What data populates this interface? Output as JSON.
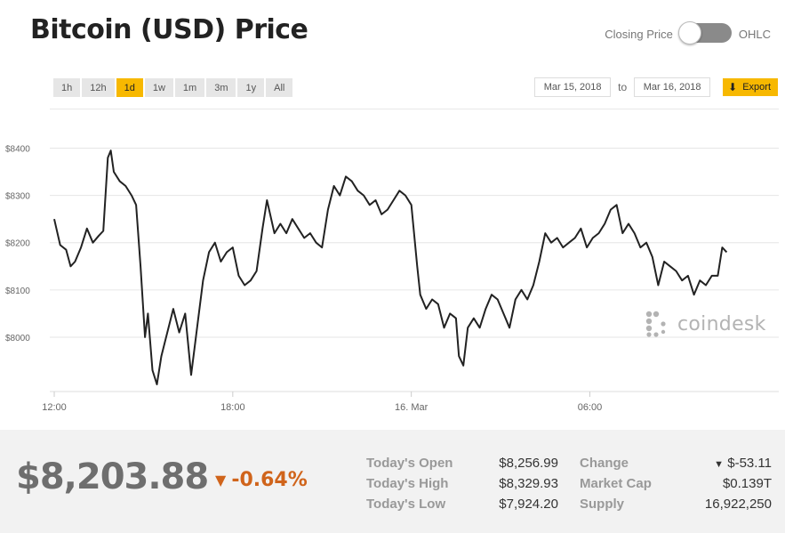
{
  "header": {
    "title": "Bitcoin (USD) Price",
    "toggle_left_label": "Closing Price",
    "toggle_right_label": "OHLC"
  },
  "ranges": [
    "1h",
    "12h",
    "1d",
    "1w",
    "1m",
    "3m",
    "1y",
    "All"
  ],
  "active_range": "1d",
  "dates": {
    "from": "Mar 15, 2018",
    "to_label": "to",
    "to": "Mar 16, 2018"
  },
  "export_label": "Export",
  "brand": "coindesk",
  "colors": {
    "accent": "#f7b800",
    "line": "#222222",
    "negative": "#d0641b",
    "watermark": "#b3b3b3"
  },
  "chart_data": {
    "type": "line",
    "y_ticks": [
      "$8400",
      "$8300",
      "$8200",
      "$8100",
      "$8000"
    ],
    "y_tick_values": [
      8400,
      8300,
      8200,
      8100,
      8000
    ],
    "x_ticks": [
      "12:00",
      "18:00",
      "16. Mar",
      "06:00"
    ],
    "x_tick_hours": [
      0,
      6,
      12,
      18
    ],
    "ylim": [
      7885,
      8450
    ],
    "xlim_hours": [
      -0.15,
      24.35
    ],
    "grid": true,
    "series": [
      {
        "values": [
          [
            0,
            8250
          ],
          [
            0.2,
            8195
          ],
          [
            0.4,
            8185
          ],
          [
            0.55,
            8150
          ],
          [
            0.7,
            8160
          ],
          [
            0.9,
            8190
          ],
          [
            1.1,
            8230
          ],
          [
            1.3,
            8200
          ],
          [
            1.5,
            8215
          ],
          [
            1.65,
            8225
          ],
          [
            1.8,
            8380
          ],
          [
            1.9,
            8395
          ],
          [
            2.0,
            8350
          ],
          [
            2.2,
            8330
          ],
          [
            2.4,
            8320
          ],
          [
            2.6,
            8300
          ],
          [
            2.75,
            8280
          ],
          [
            2.9,
            8150
          ],
          [
            3.05,
            8000
          ],
          [
            3.15,
            8050
          ],
          [
            3.3,
            7930
          ],
          [
            3.45,
            7900
          ],
          [
            3.6,
            7960
          ],
          [
            3.8,
            8010
          ],
          [
            4.0,
            8060
          ],
          [
            4.2,
            8010
          ],
          [
            4.4,
            8050
          ],
          [
            4.6,
            7920
          ],
          [
            4.8,
            8020
          ],
          [
            5.0,
            8120
          ],
          [
            5.2,
            8180
          ],
          [
            5.4,
            8200
          ],
          [
            5.6,
            8160
          ],
          [
            5.8,
            8180
          ],
          [
            6.0,
            8190
          ],
          [
            6.2,
            8130
          ],
          [
            6.4,
            8110
          ],
          [
            6.6,
            8120
          ],
          [
            6.8,
            8140
          ],
          [
            7.0,
            8230
          ],
          [
            7.15,
            8290
          ],
          [
            7.4,
            8220
          ],
          [
            7.6,
            8240
          ],
          [
            7.8,
            8220
          ],
          [
            8.0,
            8250
          ],
          [
            8.2,
            8230
          ],
          [
            8.4,
            8210
          ],
          [
            8.6,
            8220
          ],
          [
            8.8,
            8200
          ],
          [
            9.0,
            8190
          ],
          [
            9.2,
            8270
          ],
          [
            9.4,
            8320
          ],
          [
            9.6,
            8300
          ],
          [
            9.8,
            8340
          ],
          [
            10.0,
            8330
          ],
          [
            10.2,
            8310
          ],
          [
            10.4,
            8300
          ],
          [
            10.6,
            8280
          ],
          [
            10.8,
            8290
          ],
          [
            11.0,
            8260
          ],
          [
            11.2,
            8270
          ],
          [
            11.4,
            8290
          ],
          [
            11.6,
            8310
          ],
          [
            11.8,
            8300
          ],
          [
            12.0,
            8280
          ],
          [
            12.2,
            8150
          ],
          [
            12.3,
            8090
          ],
          [
            12.5,
            8060
          ],
          [
            12.7,
            8080
          ],
          [
            12.9,
            8070
          ],
          [
            13.1,
            8020
          ],
          [
            13.3,
            8050
          ],
          [
            13.5,
            8040
          ],
          [
            13.6,
            7960
          ],
          [
            13.75,
            7940
          ],
          [
            13.9,
            8020
          ],
          [
            14.1,
            8040
          ],
          [
            14.3,
            8020
          ],
          [
            14.5,
            8060
          ],
          [
            14.7,
            8090
          ],
          [
            14.9,
            8080
          ],
          [
            15.1,
            8050
          ],
          [
            15.3,
            8020
          ],
          [
            15.5,
            8080
          ],
          [
            15.7,
            8100
          ],
          [
            15.9,
            8080
          ],
          [
            16.1,
            8110
          ],
          [
            16.3,
            8160
          ],
          [
            16.5,
            8220
          ],
          [
            16.7,
            8200
          ],
          [
            16.9,
            8210
          ],
          [
            17.1,
            8190
          ],
          [
            17.3,
            8200
          ],
          [
            17.5,
            8210
          ],
          [
            17.7,
            8230
          ],
          [
            17.9,
            8190
          ],
          [
            18.1,
            8210
          ],
          [
            18.3,
            8220
          ],
          [
            18.5,
            8240
          ],
          [
            18.7,
            8270
          ],
          [
            18.9,
            8280
          ],
          [
            19.1,
            8220
          ],
          [
            19.3,
            8240
          ],
          [
            19.5,
            8220
          ],
          [
            19.7,
            8190
          ],
          [
            19.9,
            8200
          ],
          [
            20.1,
            8170
          ],
          [
            20.3,
            8110
          ],
          [
            20.5,
            8160
          ],
          [
            20.7,
            8150
          ],
          [
            20.9,
            8140
          ],
          [
            21.1,
            8120
          ],
          [
            21.3,
            8130
          ],
          [
            21.5,
            8090
          ],
          [
            21.7,
            8120
          ],
          [
            21.9,
            8110
          ],
          [
            22.1,
            8130
          ],
          [
            22.3,
            8130
          ],
          [
            22.45,
            8190
          ],
          [
            22.6,
            8180
          ]
        ]
      }
    ]
  },
  "stats": {
    "price": "$8,203.88",
    "change_pct": "-0.64%",
    "change_arrow": "▼",
    "left": [
      {
        "label": "Today's Open",
        "value": "$8,256.99"
      },
      {
        "label": "Today's High",
        "value": "$8,329.93"
      },
      {
        "label": "Today's Low",
        "value": "$7,924.20"
      }
    ],
    "right": [
      {
        "label": "Change",
        "value": "$-53.11",
        "arrow": "▼"
      },
      {
        "label": "Market Cap",
        "value": "$0.139T"
      },
      {
        "label": "Supply",
        "value": "16,922,250"
      }
    ]
  }
}
